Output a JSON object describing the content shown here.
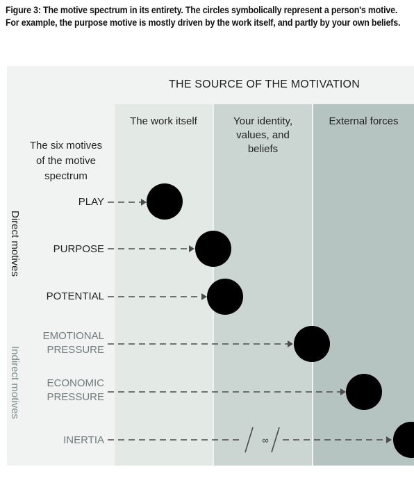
{
  "caption": "Figure 3: The motive spectrum in its entirety. The circles symbolically represent a person's motive. For example, the purpose motive is mostly driven by the work itself, and partly by your own beliefs.",
  "source_title": "THE SOURCE OF THE MOTIVATION",
  "columns": {
    "work": "The work itself",
    "identity": [
      "Your identity,",
      "values, and",
      "beliefs"
    ],
    "external": "External forces"
  },
  "six_motives_title": [
    "The six motives",
    "of the motive",
    "spectrum"
  ],
  "groups": {
    "direct": "Direct motives",
    "indirect": "Indirect motives"
  },
  "motives": [
    {
      "label": [
        "PLAY"
      ],
      "group": "direct"
    },
    {
      "label": [
        "PURPOSE"
      ],
      "group": "direct"
    },
    {
      "label": [
        "POTENTIAL"
      ],
      "group": "direct"
    },
    {
      "label": [
        "EMOTIONAL",
        "PRESSURE"
      ],
      "group": "indirect"
    },
    {
      "label": [
        "ECONOMIC",
        "PRESSURE"
      ],
      "group": "indirect"
    },
    {
      "label": [
        "INERTIA"
      ],
      "group": "indirect"
    }
  ],
  "infinity_symbol": "∞",
  "colors": {
    "panel": "#f1f3f2",
    "work_column": "#e3e9e5",
    "identity_column": "#cbd6d3",
    "external_column": "#b5c3c1",
    "direct_text": "#222222",
    "indirect_text": "#6f7b7c",
    "arrow": "#4a4a4a",
    "circle": "#000000"
  }
}
